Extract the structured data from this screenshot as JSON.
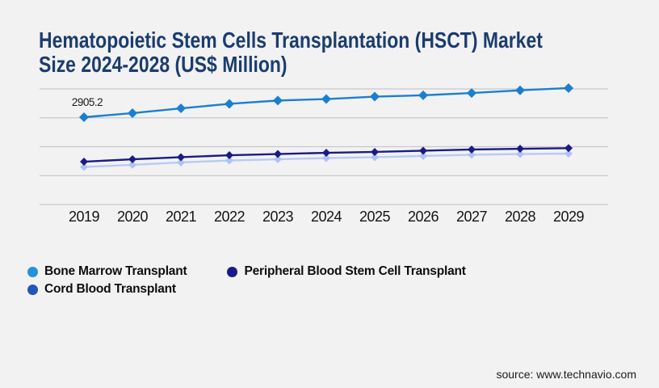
{
  "page": {
    "background": "#f2f2f3"
  },
  "header": {
    "title": "Hematopoietic Stem Cells Transplantation (HSCT) Market Size 2024-2028 (US$ Million)"
  },
  "chart_data": {
    "type": "line",
    "title": "Hematopoietic Stem Cells Transplantation (HSCT) Market Size 2024-2028 (US$ Million)",
    "title_lines": [
      "Hematopoietic Stem Cells Transplantation (HSCT) Market",
      "Size 2024-2028 (US$ Million)"
    ],
    "categories": [
      "2019",
      "2020",
      "2021",
      "2022",
      "2023",
      "2024",
      "2025",
      "2026",
      "2027",
      "2028",
      "2029"
    ],
    "series": [
      {
        "name": "Bone Marrow Transplant",
        "color": "#1b7fd1",
        "marker_color": "#1b7fd1",
        "values": [
          2905.2,
          3040,
          3200,
          3350,
          3460,
          3510,
          3590,
          3635,
          3710,
          3800,
          3875
        ]
      },
      {
        "name": "Peripheral Blood Stem Cell Transplant",
        "color": "#1b1b87",
        "marker_color": "#1b1b87",
        "values": [
          1425,
          1505,
          1575,
          1640,
          1680,
          1720,
          1750,
          1790,
          1830,
          1855,
          1875
        ]
      },
      {
        "name": "Cord Blood Transplant",
        "color": "#b7cbf4",
        "marker_color": "#adc4f2",
        "values": [
          1250,
          1320,
          1400,
          1465,
          1505,
          1545,
          1575,
          1615,
          1655,
          1680,
          1695
        ]
      }
    ],
    "data_labels": [
      {
        "series": "Bone Marrow Transplant",
        "category": "2019",
        "label": "2905.2",
        "value": 2905.2
      }
    ],
    "xlabel": "",
    "ylabel": "",
    "y_axis": {
      "labels_visible": false,
      "min": 0,
      "approx_max": 3845,
      "gridline_count": 5
    },
    "grid": true,
    "legend_position": "bottom"
  },
  "legend": {
    "items": [
      {
        "label": "Bone Marrow Transplant",
        "color": "#2593dc"
      },
      {
        "label": "Peripheral Blood Stem Cell Transplant",
        "color": "#1b1b87"
      },
      {
        "label": "Cord Blood Transplant",
        "color": "#2356ba"
      }
    ]
  },
  "footer": {
    "source": "source: www.technavio.com"
  },
  "colors": {
    "title": "#1b3d6e",
    "gridline": "#c9c9cd",
    "axis_text": "#141414",
    "data_label_text": "#1a1a1a",
    "background": "#f2f2f3"
  }
}
